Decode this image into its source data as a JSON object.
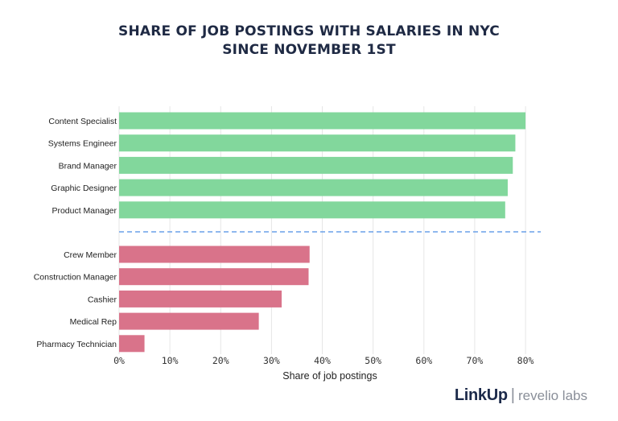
{
  "chart_data": {
    "type": "bar",
    "orientation": "horizontal",
    "title": [
      "SHARE OF JOB POSTINGS WITH SALARIES IN NYC",
      "SINCE NOVEMBER 1ST"
    ],
    "xlabel": "Share of job postings",
    "ylabel": "",
    "xlim": [
      0,
      83
    ],
    "xticks": [
      0,
      10,
      20,
      30,
      40,
      50,
      60,
      70,
      80
    ],
    "xtick_labels": [
      "0%",
      "10%",
      "20%",
      "30%",
      "40%",
      "50%",
      "60%",
      "70%",
      "80%"
    ],
    "grid": "vertical",
    "groups": [
      {
        "color": "#82d79c",
        "categories": [
          "Content Specialist",
          "Systems Engineer",
          "Brand Manager",
          "Graphic Designer",
          "Product Manager"
        ],
        "values": [
          80,
          78,
          77.5,
          76.5,
          76
        ]
      },
      {
        "color": "#d9738a",
        "categories": [
          "Crew Member",
          "Construction Manager",
          "Cashier",
          "Medical Rep",
          "Pharmacy Technician"
        ],
        "values": [
          37.5,
          37.3,
          32,
          27.5,
          5
        ]
      }
    ],
    "separator": {
      "style": "dashed",
      "color": "#6aa0e8"
    }
  },
  "branding": {
    "linkup": "LinkUp",
    "separator": "|",
    "revelio": "revelio labs"
  }
}
